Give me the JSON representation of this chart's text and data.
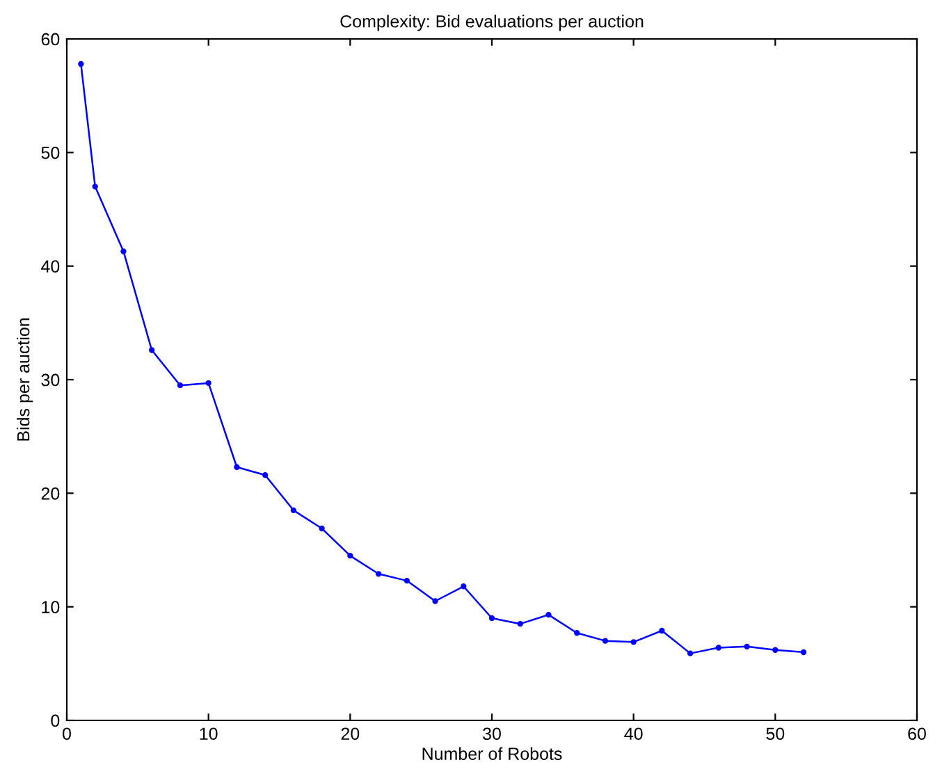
{
  "chart_data": {
    "type": "line",
    "title": "Complexity: Bid evaluations per auction",
    "xlabel": "Number of Robots",
    "ylabel": "Bids per auction",
    "x": [
      1,
      2,
      4,
      6,
      8,
      10,
      12,
      14,
      16,
      18,
      20,
      22,
      24,
      26,
      28,
      30,
      32,
      34,
      36,
      38,
      40,
      42,
      44,
      46,
      48,
      50,
      52
    ],
    "series": [
      {
        "color": "#0000ff",
        "values": [
          57.8,
          47.0,
          41.3,
          32.6,
          29.5,
          29.7,
          22.3,
          21.6,
          18.5,
          16.9,
          14.5,
          12.9,
          12.3,
          10.5,
          11.8,
          9.0,
          8.5,
          9.3,
          7.7,
          7.0,
          6.9,
          7.9,
          5.9,
          6.4,
          6.5,
          6.2,
          6.0
        ]
      }
    ],
    "xlim": [
      0,
      60
    ],
    "xticks": [
      0,
      10,
      20,
      30,
      40,
      50,
      60
    ],
    "ylim": [
      0,
      60
    ],
    "yticks": [
      0,
      10,
      20,
      30,
      40,
      50,
      60
    ],
    "grid": false,
    "legend": false,
    "marker": "circle",
    "line_style": "solid"
  }
}
